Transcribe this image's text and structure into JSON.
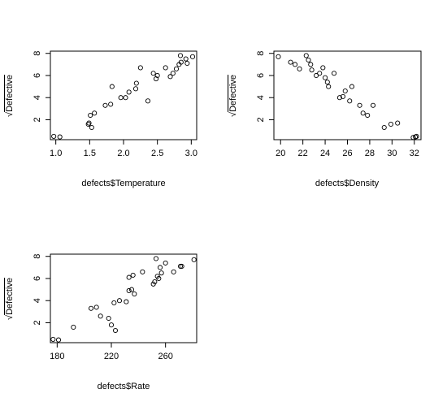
{
  "chart_data": [
    {
      "type": "scatter",
      "xlabel": "defects$Temperature",
      "ylabel": "Defective",
      "ylabel_sqrt_symbol": "√",
      "xlim": [
        0.92,
        3.08
      ],
      "ylim": [
        0.2,
        8.2
      ],
      "x_ticks": [
        1.0,
        1.5,
        2.0,
        2.5,
        3.0
      ],
      "x_tick_labels": [
        "1.0",
        "1.5",
        "2.0",
        "2.5",
        "3.0"
      ],
      "y_ticks": [
        2,
        4,
        6,
        8
      ],
      "y_tick_labels": [
        "2",
        "4",
        "6",
        "8"
      ],
      "points": [
        [
          0.97,
          0.5
        ],
        [
          1.06,
          0.45
        ],
        [
          1.48,
          1.6
        ],
        [
          1.49,
          1.7
        ],
        [
          1.51,
          2.4
        ],
        [
          1.53,
          1.3
        ],
        [
          1.57,
          2.6
        ],
        [
          1.73,
          3.3
        ],
        [
          1.81,
          3.4
        ],
        [
          1.83,
          5.0
        ],
        [
          1.96,
          4.0
        ],
        [
          2.03,
          4.0
        ],
        [
          2.08,
          4.5
        ],
        [
          2.18,
          4.8
        ],
        [
          2.19,
          5.3
        ],
        [
          2.25,
          6.7
        ],
        [
          2.36,
          3.7
        ],
        [
          2.44,
          6.2
        ],
        [
          2.48,
          5.7
        ],
        [
          2.5,
          6.0
        ],
        [
          2.62,
          6.7
        ],
        [
          2.69,
          5.9
        ],
        [
          2.73,
          6.2
        ],
        [
          2.78,
          6.6
        ],
        [
          2.82,
          7.0
        ],
        [
          2.84,
          7.8
        ],
        [
          2.85,
          7.2
        ],
        [
          2.92,
          7.5
        ],
        [
          2.94,
          7.1
        ],
        [
          3.02,
          7.7
        ]
      ]
    },
    {
      "type": "scatter",
      "xlabel": "defects$Density",
      "ylabel": "Defective",
      "ylabel_sqrt_symbol": "√",
      "xlim": [
        19.4,
        32.6
      ],
      "ylim": [
        0.2,
        8.2
      ],
      "x_ticks": [
        20,
        22,
        24,
        26,
        28,
        30,
        32
      ],
      "x_tick_labels": [
        "20",
        "22",
        "24",
        "26",
        "28",
        "30",
        "32"
      ],
      "y_ticks": [
        2,
        4,
        6,
        8
      ],
      "y_tick_labels": [
        "2",
        "4",
        "6",
        "8"
      ],
      "points": [
        [
          19.8,
          7.7
        ],
        [
          20.9,
          7.2
        ],
        [
          21.3,
          7.0
        ],
        [
          21.7,
          6.6
        ],
        [
          22.3,
          7.8
        ],
        [
          22.5,
          7.4
        ],
        [
          22.7,
          7.0
        ],
        [
          22.8,
          6.5
        ],
        [
          23.2,
          6.0
        ],
        [
          23.5,
          6.2
        ],
        [
          23.8,
          6.7
        ],
        [
          24.0,
          5.8
        ],
        [
          24.2,
          5.4
        ],
        [
          24.3,
          5.0
        ],
        [
          24.8,
          6.2
        ],
        [
          25.3,
          4.0
        ],
        [
          25.6,
          4.1
        ],
        [
          25.8,
          4.6
        ],
        [
          26.2,
          3.7
        ],
        [
          26.4,
          5.0
        ],
        [
          27.1,
          3.3
        ],
        [
          27.4,
          2.6
        ],
        [
          27.8,
          2.4
        ],
        [
          28.3,
          3.3
        ],
        [
          29.3,
          1.3
        ],
        [
          29.9,
          1.6
        ],
        [
          30.5,
          1.7
        ],
        [
          32.1,
          0.45
        ],
        [
          32.2,
          0.5
        ],
        [
          31.9,
          0.4
        ]
      ]
    },
    {
      "type": "scatter",
      "xlabel": "defects$Rate",
      "ylabel": "Defective",
      "ylabel_sqrt_symbol": "√",
      "xlim": [
        175,
        283
      ],
      "ylim": [
        0.2,
        8.2
      ],
      "x_ticks": [
        180,
        220,
        260
      ],
      "x_tick_labels": [
        "180",
        "220",
        "260"
      ],
      "y_ticks": [
        2,
        4,
        6,
        8
      ],
      "y_tick_labels": [
        "2",
        "4",
        "6",
        "8"
      ],
      "points": [
        [
          177,
          0.5
        ],
        [
          181,
          0.45
        ],
        [
          192,
          1.6
        ],
        [
          205,
          3.3
        ],
        [
          209,
          3.4
        ],
        [
          212,
          2.6
        ],
        [
          218,
          2.4
        ],
        [
          220,
          1.8
        ],
        [
          222,
          3.8
        ],
        [
          223,
          1.3
        ],
        [
          226,
          4.0
        ],
        [
          231,
          3.9
        ],
        [
          233,
          4.9
        ],
        [
          233,
          6.1
        ],
        [
          235,
          5.0
        ],
        [
          236,
          6.3
        ],
        [
          237,
          4.6
        ],
        [
          243,
          6.6
        ],
        [
          251,
          5.5
        ],
        [
          252,
          5.7
        ],
        [
          253,
          7.8
        ],
        [
          254,
          6.2
        ],
        [
          255,
          6.0
        ],
        [
          256,
          7.0
        ],
        [
          257,
          6.5
        ],
        [
          260,
          7.4
        ],
        [
          266,
          6.6
        ],
        [
          271,
          7.1
        ],
        [
          272,
          7.1
        ],
        [
          281,
          7.7
        ]
      ]
    }
  ]
}
